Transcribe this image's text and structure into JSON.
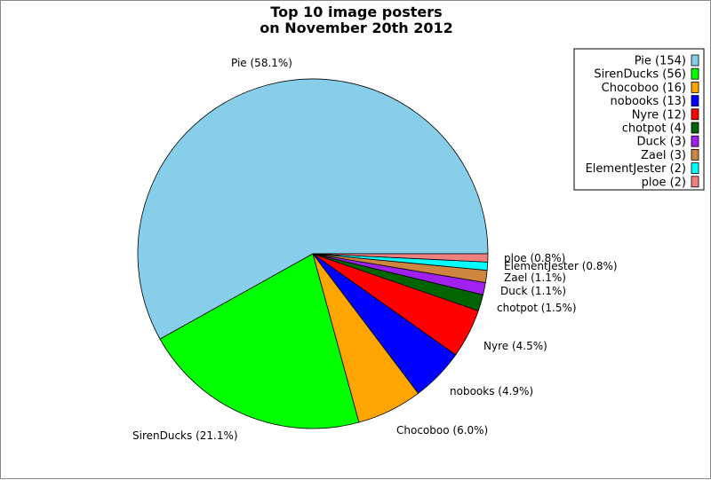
{
  "chart_data": {
    "type": "pie",
    "title_lines": [
      "Top 10 image posters",
      "on November 20th 2012"
    ],
    "slices": [
      {
        "name": "Pie",
        "count": 154,
        "percent": "58.1%",
        "color": "#87ceeb"
      },
      {
        "name": "SirenDucks",
        "count": 56,
        "percent": "21.1%",
        "color": "#00ff00"
      },
      {
        "name": "Chocoboo",
        "count": 16,
        "percent": "6.0%",
        "color": "#ffa500"
      },
      {
        "name": "nobooks",
        "count": 13,
        "percent": "4.9%",
        "color": "#0000ff"
      },
      {
        "name": "Nyre",
        "count": 12,
        "percent": "4.5%",
        "color": "#ff0000"
      },
      {
        "name": "chotpot",
        "count": 4,
        "percent": "1.5%",
        "color": "#006400"
      },
      {
        "name": "Duck",
        "count": 3,
        "percent": "1.1%",
        "color": "#a020f0"
      },
      {
        "name": "Zael",
        "count": 3,
        "percent": "1.1%",
        "color": "#cd853f"
      },
      {
        "name": "ElementJester",
        "count": 2,
        "percent": "0.8%",
        "color": "#00ffff"
      },
      {
        "name": "ploe",
        "count": 2,
        "percent": "0.8%",
        "color": "#f08080"
      }
    ],
    "legend_placement": "top-right"
  }
}
